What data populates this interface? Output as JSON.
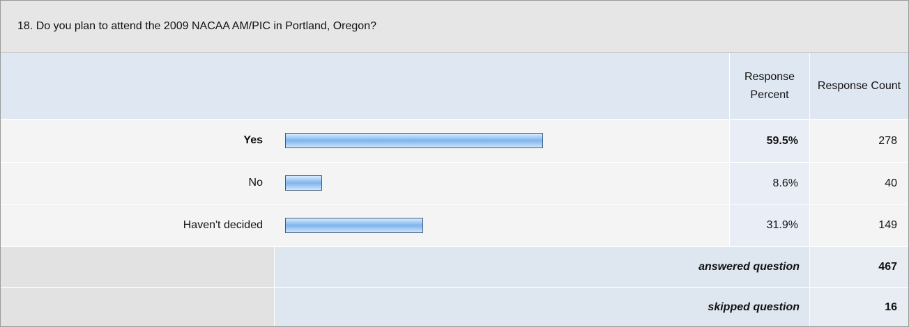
{
  "question": "18. Do you plan to attend the 2009 NACAA AM/PIC in Portland, Oregon?",
  "table": {
    "headers": [
      "Response Percent",
      "Response Count"
    ],
    "rows": [
      {
        "label": "Yes",
        "percent": 59.5,
        "percent_label": "59.5%",
        "count": 278
      },
      {
        "label": "No",
        "percent": 8.6,
        "percent_label": "8.6%",
        "count": 40
      },
      {
        "label": "Haven't decided",
        "percent": 31.9,
        "percent_label": "31.9%",
        "count": 149
      }
    ],
    "answered": {
      "label": "answered question",
      "count": 467
    },
    "skipped": {
      "label": "skipped question",
      "count": 16
    }
  }
}
